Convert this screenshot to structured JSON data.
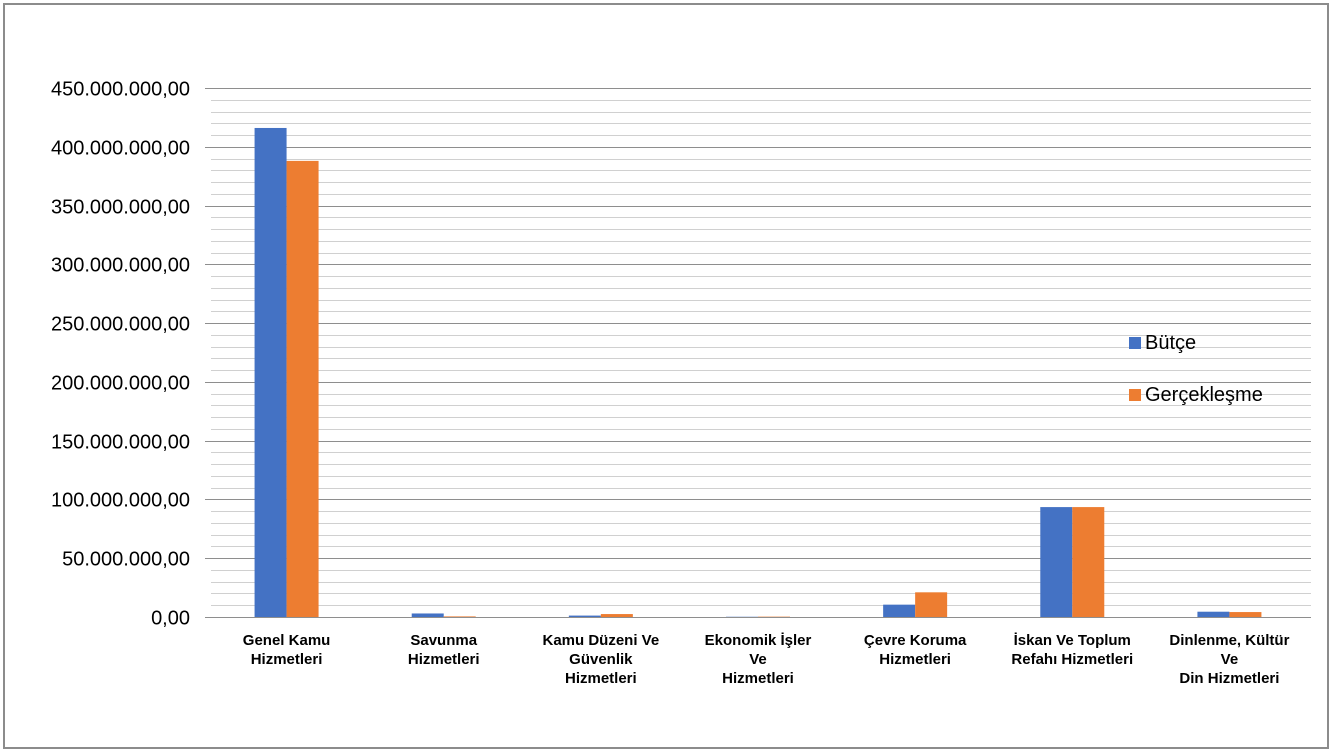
{
  "chart_data": {
    "type": "bar",
    "categories": [
      "Genel Kamu Hizmetleri",
      "Savunma Hizmetleri",
      "Kamu Düzeni Ve Güvenlik Hizmetleri",
      "Ekonomik İşler Ve Hizmetleri",
      "Çevre Koruma Hizmetleri",
      "İskan Ve Toplum Refahı Hizmetleri",
      "Dinlenme, Kültür Ve Din Hizmetleri"
    ],
    "category_label_lines": [
      [
        "Genel Kamu",
        "Hizmetleri"
      ],
      [
        "Savunma",
        "Hizmetleri"
      ],
      [
        "Kamu Düzeni Ve",
        "Güvenlik",
        "Hizmetleri"
      ],
      [
        "Ekonomik İşler",
        "Ve",
        "Hizmetleri"
      ],
      [
        "Çevre Koruma",
        "Hizmetleri"
      ],
      [
        "İskan Ve Toplum",
        "Refahı Hizmetleri"
      ],
      [
        "Dinlenme, Kültür",
        "Ve",
        "Din Hizmetleri"
      ]
    ],
    "series": [
      {
        "name": "Bütçe",
        "color": "#4472c4",
        "values": [
          416000000,
          3000000,
          1200000,
          200000,
          10500000,
          93500000,
          4500000
        ]
      },
      {
        "name": "Gerçekleşme",
        "color": "#ed7d31",
        "values": [
          388000000,
          500000,
          2500000,
          300000,
          21000000,
          93500000,
          4200000
        ]
      }
    ],
    "ylim": [
      0,
      450000000
    ],
    "major_tick_step": 50000000,
    "minor_tick_step": 10000000,
    "y_tick_labels": [
      "0,00",
      "50.000.000,00",
      "100.000.000,00",
      "150.000.000,00",
      "200.000.000,00",
      "250.000.000,00",
      "300.000.000,00",
      "350.000.000,00",
      "400.000.000,00",
      "450.000.000,00"
    ],
    "grid": true,
    "legend_position": "right",
    "title": "",
    "xlabel": "",
    "ylabel": ""
  }
}
